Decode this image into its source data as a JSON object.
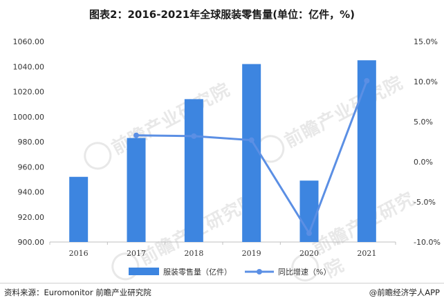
{
  "title": "图表2：2016-2021年全球服装零售量(单位：亿件，%)",
  "source_text": "资料来源：Euromonitor 前瞻产业研究院",
  "brand_text": "@前瞻经济学人APP",
  "watermark_text": "前瞻产业研究院",
  "chart_data": {
    "type": "bar",
    "categories": [
      "2016",
      "2017",
      "2018",
      "2019",
      "2020",
      "2021"
    ],
    "series": [
      {
        "name": "服装零售量（亿件）",
        "type": "bar",
        "axis": "left",
        "color": "#3d85e0",
        "values": [
          952,
          983,
          1014,
          1042,
          949,
          1045
        ]
      },
      {
        "name": "同比增速（%）",
        "type": "line",
        "axis": "right",
        "color": "#5b8fe4",
        "values": [
          null,
          3.3,
          3.2,
          2.7,
          -8.9,
          10.1
        ]
      }
    ],
    "y_left": {
      "min": 900,
      "max": 1060,
      "ticks": [
        900,
        920,
        940,
        960,
        980,
        1000,
        1020,
        1040,
        1060
      ],
      "tick_labels": [
        "900.00",
        "920.00",
        "940.00",
        "960.00",
        "980.00",
        "1000.00",
        "1020.00",
        "1040.00",
        "1060.00"
      ]
    },
    "y_right": {
      "min": -10,
      "max": 15,
      "ticks": [
        -10,
        -5,
        0,
        5,
        10,
        15
      ],
      "tick_labels": [
        "-10.0%",
        "-5.0%",
        "0.0%",
        "5.0%",
        "10.0%",
        "15.0%"
      ]
    },
    "legend_position": "bottom",
    "grid": false
  }
}
